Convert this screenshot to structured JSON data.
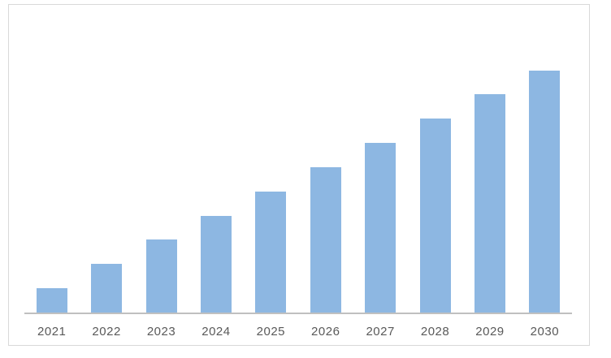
{
  "page": {
    "background_color": "#ffffff"
  },
  "chart": {
    "frame_border_color": "#d9d9d9",
    "axis_line_color": "#c0c0c0",
    "label_color": "#595959"
  },
  "chart_data": {
    "type": "bar",
    "title": "",
    "xlabel": "",
    "ylabel": "",
    "categories": [
      "2021",
      "2022",
      "2023",
      "2024",
      "2025",
      "2026",
      "2027",
      "2028",
      "2029",
      "2030"
    ],
    "values": [
      1,
      2,
      3,
      4,
      5,
      6,
      7,
      8,
      9,
      10
    ],
    "values_note": "No y-axis scale or data labels are shown; values are relative bar heights (equal annual increments, linear growth).",
    "ylim": [
      0,
      12.7
    ],
    "bar_color": "#8db7e2",
    "grid": false,
    "legend": false,
    "y_axis_visible": false,
    "x_axis_visible": true
  }
}
